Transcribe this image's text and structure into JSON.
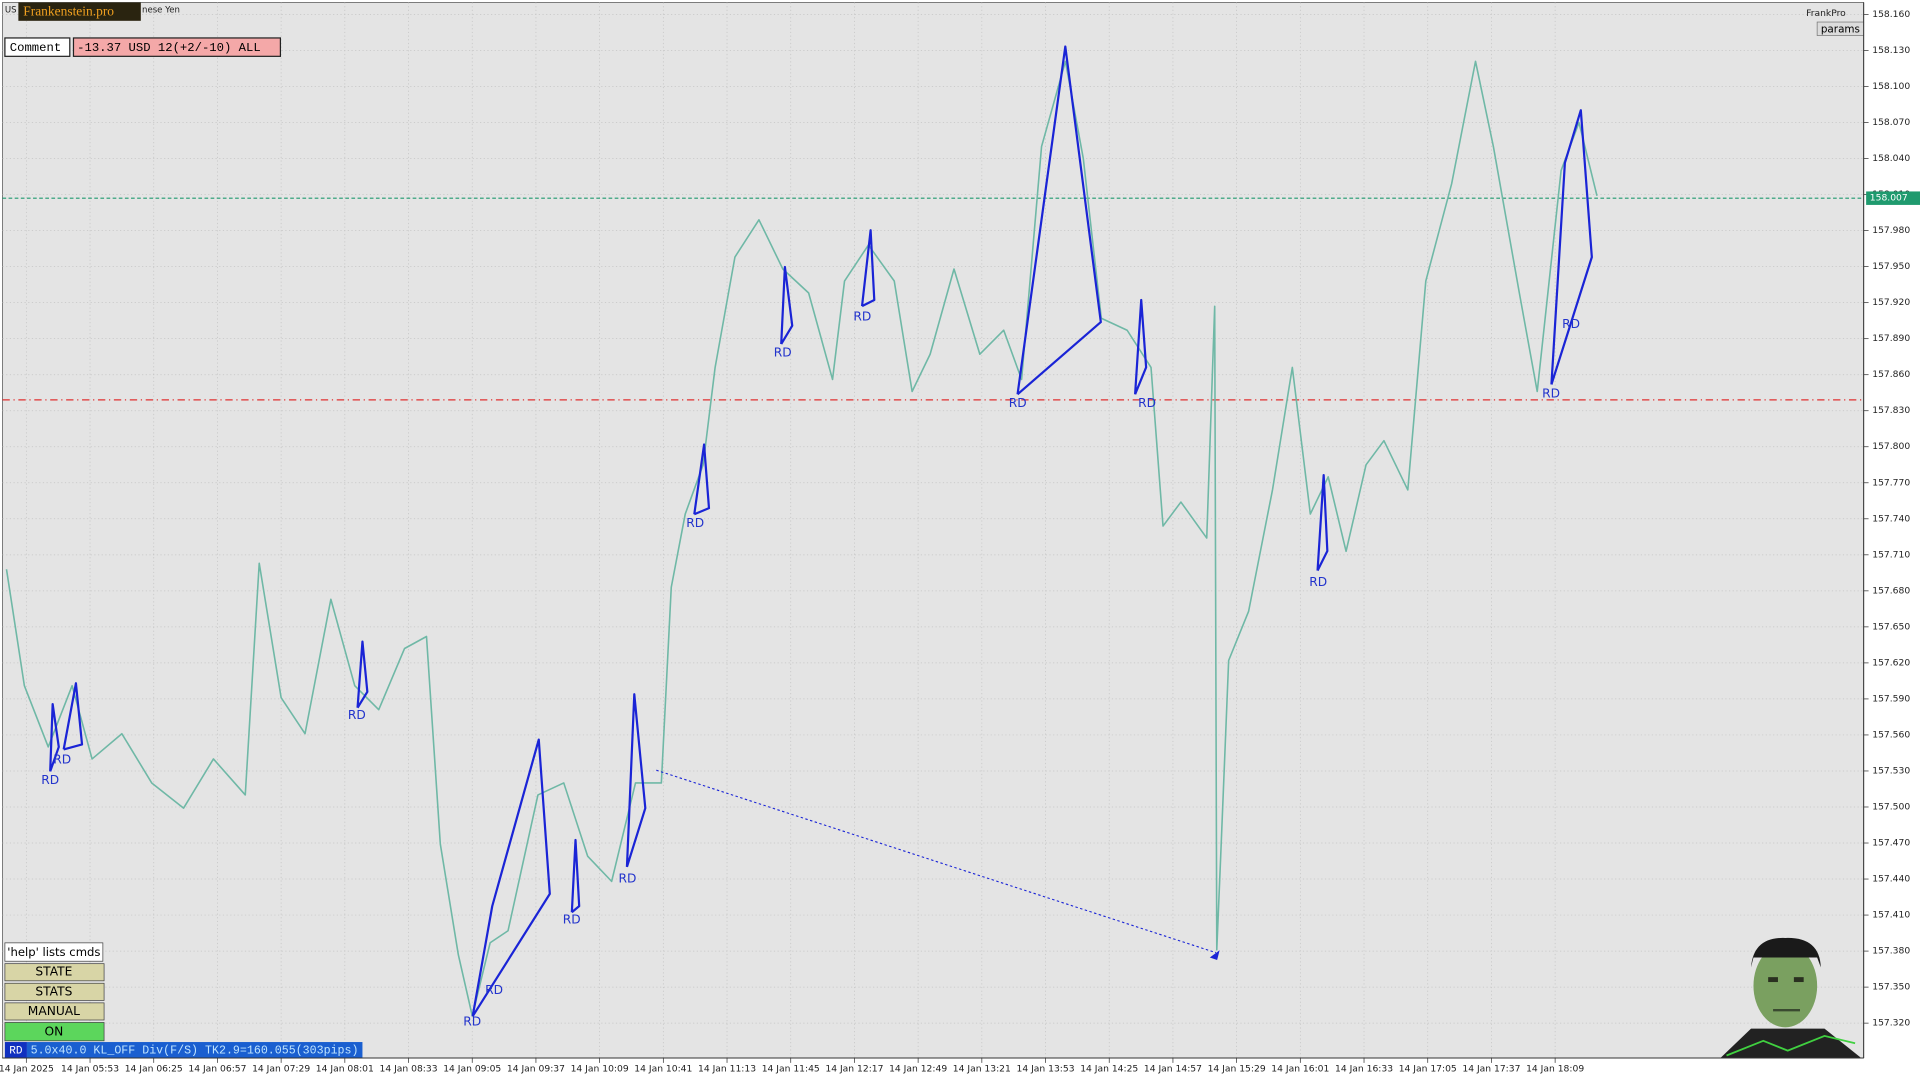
{
  "header": {
    "logo": "Frankenstein.pro",
    "symbol": "nese Yen",
    "comment_label": "Comment",
    "comment_value": "-13.37 USD 12(+2/-10) ALL",
    "brand": "FrankPro",
    "params_button": "params"
  },
  "buttons": [
    "'help' lists cmds",
    "STATE",
    "STATS",
    "MANUAL",
    "ON"
  ],
  "status": {
    "mode": "RD",
    "text": "5.0x40.0 KL_OFF Div(F/S) TK2.9=160.055(303pips)"
  },
  "chart_data": {
    "type": "line",
    "color": "#6fb8a6",
    "grid": true,
    "x": [
      311,
      320,
      332,
      344,
      354,
      369,
      384,
      400,
      415,
      431,
      438,
      449,
      461,
      474,
      486,
      498,
      511,
      522,
      529,
      538,
      545,
      554,
      563,
      578,
      591,
      603,
      615,
      627,
      640,
      645,
      652,
      661,
      667,
      677,
      689,
      701,
      714,
      726,
      732,
      744,
      757,
      766,
      775,
      787,
      800,
      812,
      821,
      831,
      843,
      852,
      861,
      874,
      886,
      892,
      901,
      914,
      918,
      919,
      921,
      925,
      935,
      947,
      957,
      966,
      975,
      984,
      994,
      1003,
      1015,
      1024,
      1037,
      1049,
      1058,
      1071,
      1080,
      1092,
      1101,
      1110
    ],
    "values": [
      157.698,
      157.601,
      157.55,
      157.601,
      157.54,
      157.561,
      157.52,
      157.499,
      157.54,
      157.51,
      157.703,
      157.591,
      157.561,
      157.673,
      157.601,
      157.581,
      157.632,
      157.642,
      157.469,
      157.377,
      157.326,
      157.387,
      157.397,
      157.51,
      157.52,
      157.459,
      157.438,
      157.52,
      157.52,
      157.683,
      157.744,
      157.785,
      157.866,
      157.958,
      157.989,
      157.948,
      157.928,
      157.856,
      157.938,
      157.968,
      157.938,
      157.846,
      157.877,
      157.948,
      157.877,
      157.897,
      157.856,
      158.05,
      158.121,
      158.04,
      157.907,
      157.897,
      157.866,
      157.734,
      157.754,
      157.724,
      157.917,
      157.381,
      157.459,
      157.622,
      157.663,
      157.764,
      157.866,
      157.744,
      157.775,
      157.713,
      157.785,
      157.805,
      157.764,
      157.938,
      158.019,
      158.121,
      158.05,
      157.928,
      157.846,
      158.03,
      158.07,
      158.009
    ],
    "xlim": [
      309,
      1244
    ],
    "xticks": [
      {
        "value": 321,
        "label": "14 Jan 2025"
      },
      {
        "value": 353,
        "label": "14 Jan 05:53"
      },
      {
        "value": 385,
        "label": "14 Jan 06:25"
      },
      {
        "value": 417,
        "label": "14 Jan 06:57"
      },
      {
        "value": 449,
        "label": "14 Jan 07:29"
      },
      {
        "value": 481,
        "label": "14 Jan 08:01"
      },
      {
        "value": 513,
        "label": "14 Jan 08:33"
      },
      {
        "value": 545,
        "label": "14 Jan 09:05"
      },
      {
        "value": 577,
        "label": "14 Jan 09:37"
      },
      {
        "value": 609,
        "label": "14 Jan 10:09"
      },
      {
        "value": 641,
        "label": "14 Jan 10:41"
      },
      {
        "value": 673,
        "label": "14 Jan 11:13"
      },
      {
        "value": 705,
        "label": "14 Jan 11:45"
      },
      {
        "value": 737,
        "label": "14 Jan 12:17"
      },
      {
        "value": 769,
        "label": "14 Jan 12:49"
      },
      {
        "value": 801,
        "label": "14 Jan 13:21"
      },
      {
        "value": 833,
        "label": "14 Jan 13:53"
      },
      {
        "value": 865,
        "label": "14 Jan 14:25"
      },
      {
        "value": 897,
        "label": "14 Jan 14:57"
      },
      {
        "value": 929,
        "label": "14 Jan 15:29"
      },
      {
        "value": 961,
        "label": "14 Jan 16:01"
      },
      {
        "value": 993,
        "label": "14 Jan 16:33"
      },
      {
        "value": 1025,
        "label": "14 Jan 17:05"
      },
      {
        "value": 1057,
        "label": "14 Jan 17:37"
      },
      {
        "value": 1089,
        "label": "14 Jan 18:09"
      }
    ],
    "ylim": [
      157.291,
      158.17
    ],
    "yticks": [
      {
        "value": 158.16,
        "label": "158.160"
      },
      {
        "value": 158.13,
        "label": "158.130"
      },
      {
        "value": 158.1,
        "label": "158.100"
      },
      {
        "value": 158.07,
        "label": "158.070"
      },
      {
        "value": 158.04,
        "label": "158.040"
      },
      {
        "value": 158.01,
        "label": "158.010"
      },
      {
        "value": 157.98,
        "label": "157.980"
      },
      {
        "value": 157.95,
        "label": "157.950"
      },
      {
        "value": 157.92,
        "label": "157.920"
      },
      {
        "value": 157.89,
        "label": "157.890"
      },
      {
        "value": 157.86,
        "label": "157.860"
      },
      {
        "value": 157.83,
        "label": "157.830"
      },
      {
        "value": 157.8,
        "label": "157.800"
      },
      {
        "value": 157.77,
        "label": "157.770"
      },
      {
        "value": 157.74,
        "label": "157.740"
      },
      {
        "value": 157.71,
        "label": "157.710"
      },
      {
        "value": 157.68,
        "label": "157.680"
      },
      {
        "value": 157.65,
        "label": "157.650"
      },
      {
        "value": 157.62,
        "label": "157.620"
      },
      {
        "value": 157.59,
        "label": "157.590"
      },
      {
        "value": 157.56,
        "label": "157.560"
      },
      {
        "value": 157.53,
        "label": "157.530"
      },
      {
        "value": 157.5,
        "label": "157.500"
      },
      {
        "value": 157.47,
        "label": "157.470"
      },
      {
        "value": 157.44,
        "label": "157.440"
      },
      {
        "value": 157.41,
        "label": "157.410"
      },
      {
        "value": 157.38,
        "label": "157.380"
      },
      {
        "value": 157.35,
        "label": "157.350"
      },
      {
        "value": 157.32,
        "label": "157.320"
      }
    ],
    "levels": [
      {
        "value": 158.007,
        "label": "158.007",
        "color": "#1f9a6e"
      },
      {
        "value": 157.839,
        "color": "#e03030"
      }
    ],
    "annotations": [
      {
        "text": "RD",
        "x": 333,
        "y": 157.522
      },
      {
        "text": "RD",
        "x": 339,
        "y": 157.539
      },
      {
        "text": "RD",
        "x": 487,
        "y": 157.576
      },
      {
        "text": "RD",
        "x": 545,
        "y": 157.321
      },
      {
        "text": "RD",
        "x": 556,
        "y": 157.347
      },
      {
        "text": "RD",
        "x": 595,
        "y": 157.406
      },
      {
        "text": "RD",
        "x": 623,
        "y": 157.44
      },
      {
        "text": "RD",
        "x": 657,
        "y": 157.736
      },
      {
        "text": "RD",
        "x": 701,
        "y": 157.878
      },
      {
        "text": "RD",
        "x": 741,
        "y": 157.908
      },
      {
        "text": "RD",
        "x": 819,
        "y": 157.836
      },
      {
        "text": "RD",
        "x": 884,
        "y": 157.836
      },
      {
        "text": "RD",
        "x": 970,
        "y": 157.687
      },
      {
        "text": "RD",
        "x": 1087,
        "y": 157.844
      },
      {
        "text": "RD",
        "x": 1097,
        "y": 157.902
      }
    ]
  }
}
